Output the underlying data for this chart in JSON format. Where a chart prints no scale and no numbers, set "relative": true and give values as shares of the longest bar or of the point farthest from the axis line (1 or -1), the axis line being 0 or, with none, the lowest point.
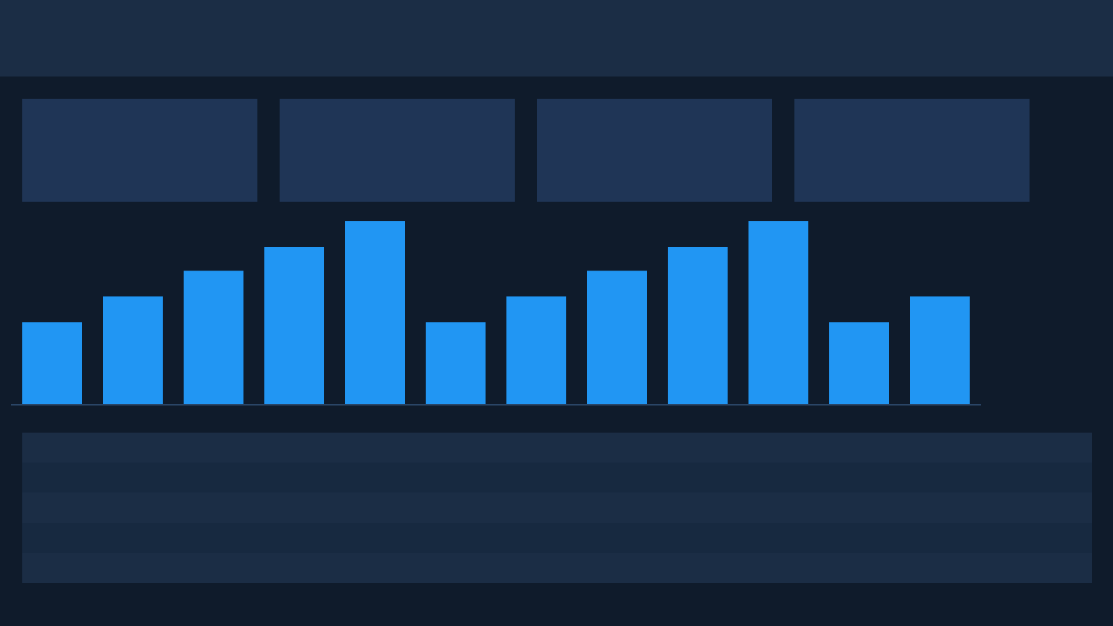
{
  "chart_data": {
    "type": "bar",
    "categories": [
      null,
      null,
      null,
      null,
      null,
      null,
      null,
      null,
      null,
      null,
      null,
      null
    ],
    "values": [
      0.45,
      0.59,
      0.73,
      0.86,
      1,
      0.45,
      0.59,
      0.73,
      0.86,
      1,
      0.45,
      0.59
    ],
    "color": "#2196f3",
    "relative": true
  }
}
